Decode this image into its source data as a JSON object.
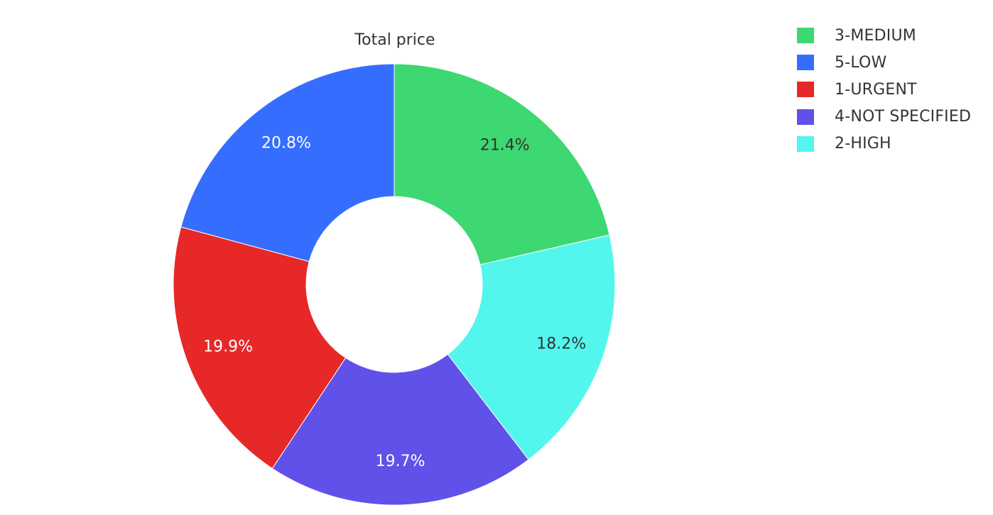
{
  "chart_data": {
    "type": "pie",
    "title": "Total price",
    "hole": true,
    "legend_position": "top-right",
    "slices": [
      {
        "label": "3-MEDIUM",
        "value": 21.4,
        "display": "21.4%",
        "color": "#3dd872",
        "text_color": "#333333"
      },
      {
        "label": "2-HIGH",
        "value": 18.2,
        "display": "18.2%",
        "color": "#52f6ec",
        "text_color": "#333333"
      },
      {
        "label": "4-NOT SPECIFIED",
        "value": 19.7,
        "display": "19.7%",
        "color": "#6051e8",
        "text_color": "#ffffff"
      },
      {
        "label": "1-URGENT",
        "value": 19.9,
        "display": "19.9%",
        "color": "#e72828",
        "text_color": "#ffffff"
      },
      {
        "label": "5-LOW",
        "value": 20.8,
        "display": "20.8%",
        "color": "#356dff",
        "text_color": "#ffffff"
      }
    ],
    "legend": [
      {
        "label": "3-MEDIUM",
        "color": "#3dd872"
      },
      {
        "label": "5-LOW",
        "color": "#356dff"
      },
      {
        "label": "1-URGENT",
        "color": "#e72828"
      },
      {
        "label": "4-NOT SPECIFIED",
        "color": "#6051e8"
      },
      {
        "label": "2-HIGH",
        "color": "#52f6ec"
      }
    ]
  }
}
